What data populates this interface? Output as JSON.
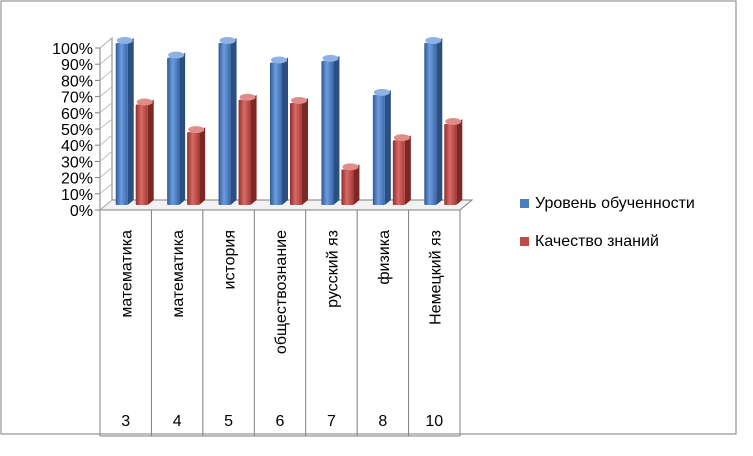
{
  "chart_data": {
    "type": "bar",
    "style": "3d-clustered-column",
    "categories": [
      {
        "subject": "математика",
        "grade": "3"
      },
      {
        "subject": "математика",
        "grade": "4"
      },
      {
        "subject": "история",
        "grade": "5"
      },
      {
        "subject": "обществознание",
        "grade": "6"
      },
      {
        "subject": "русский яз",
        "grade": "7"
      },
      {
        "subject": "физика",
        "grade": "8"
      },
      {
        "subject": "Немецкий  яз",
        "grade": "10"
      }
    ],
    "series": [
      {
        "name": "Уровень обученности",
        "color": "#4a7ebb",
        "values": [
          100,
          91,
          100,
          88,
          89,
          68,
          100
        ]
      },
      {
        "name": "Качество знаний",
        "color": "#be4b48",
        "values": [
          62,
          45,
          65,
          63,
          22,
          40,
          50
        ]
      }
    ],
    "ylim": [
      0,
      100
    ],
    "yticks": [
      "0%",
      "10%",
      "20%",
      "30%",
      "40%",
      "50%",
      "60%",
      "70%",
      "80%",
      "90%",
      "100%"
    ],
    "legend_position": "right",
    "grid": false
  }
}
